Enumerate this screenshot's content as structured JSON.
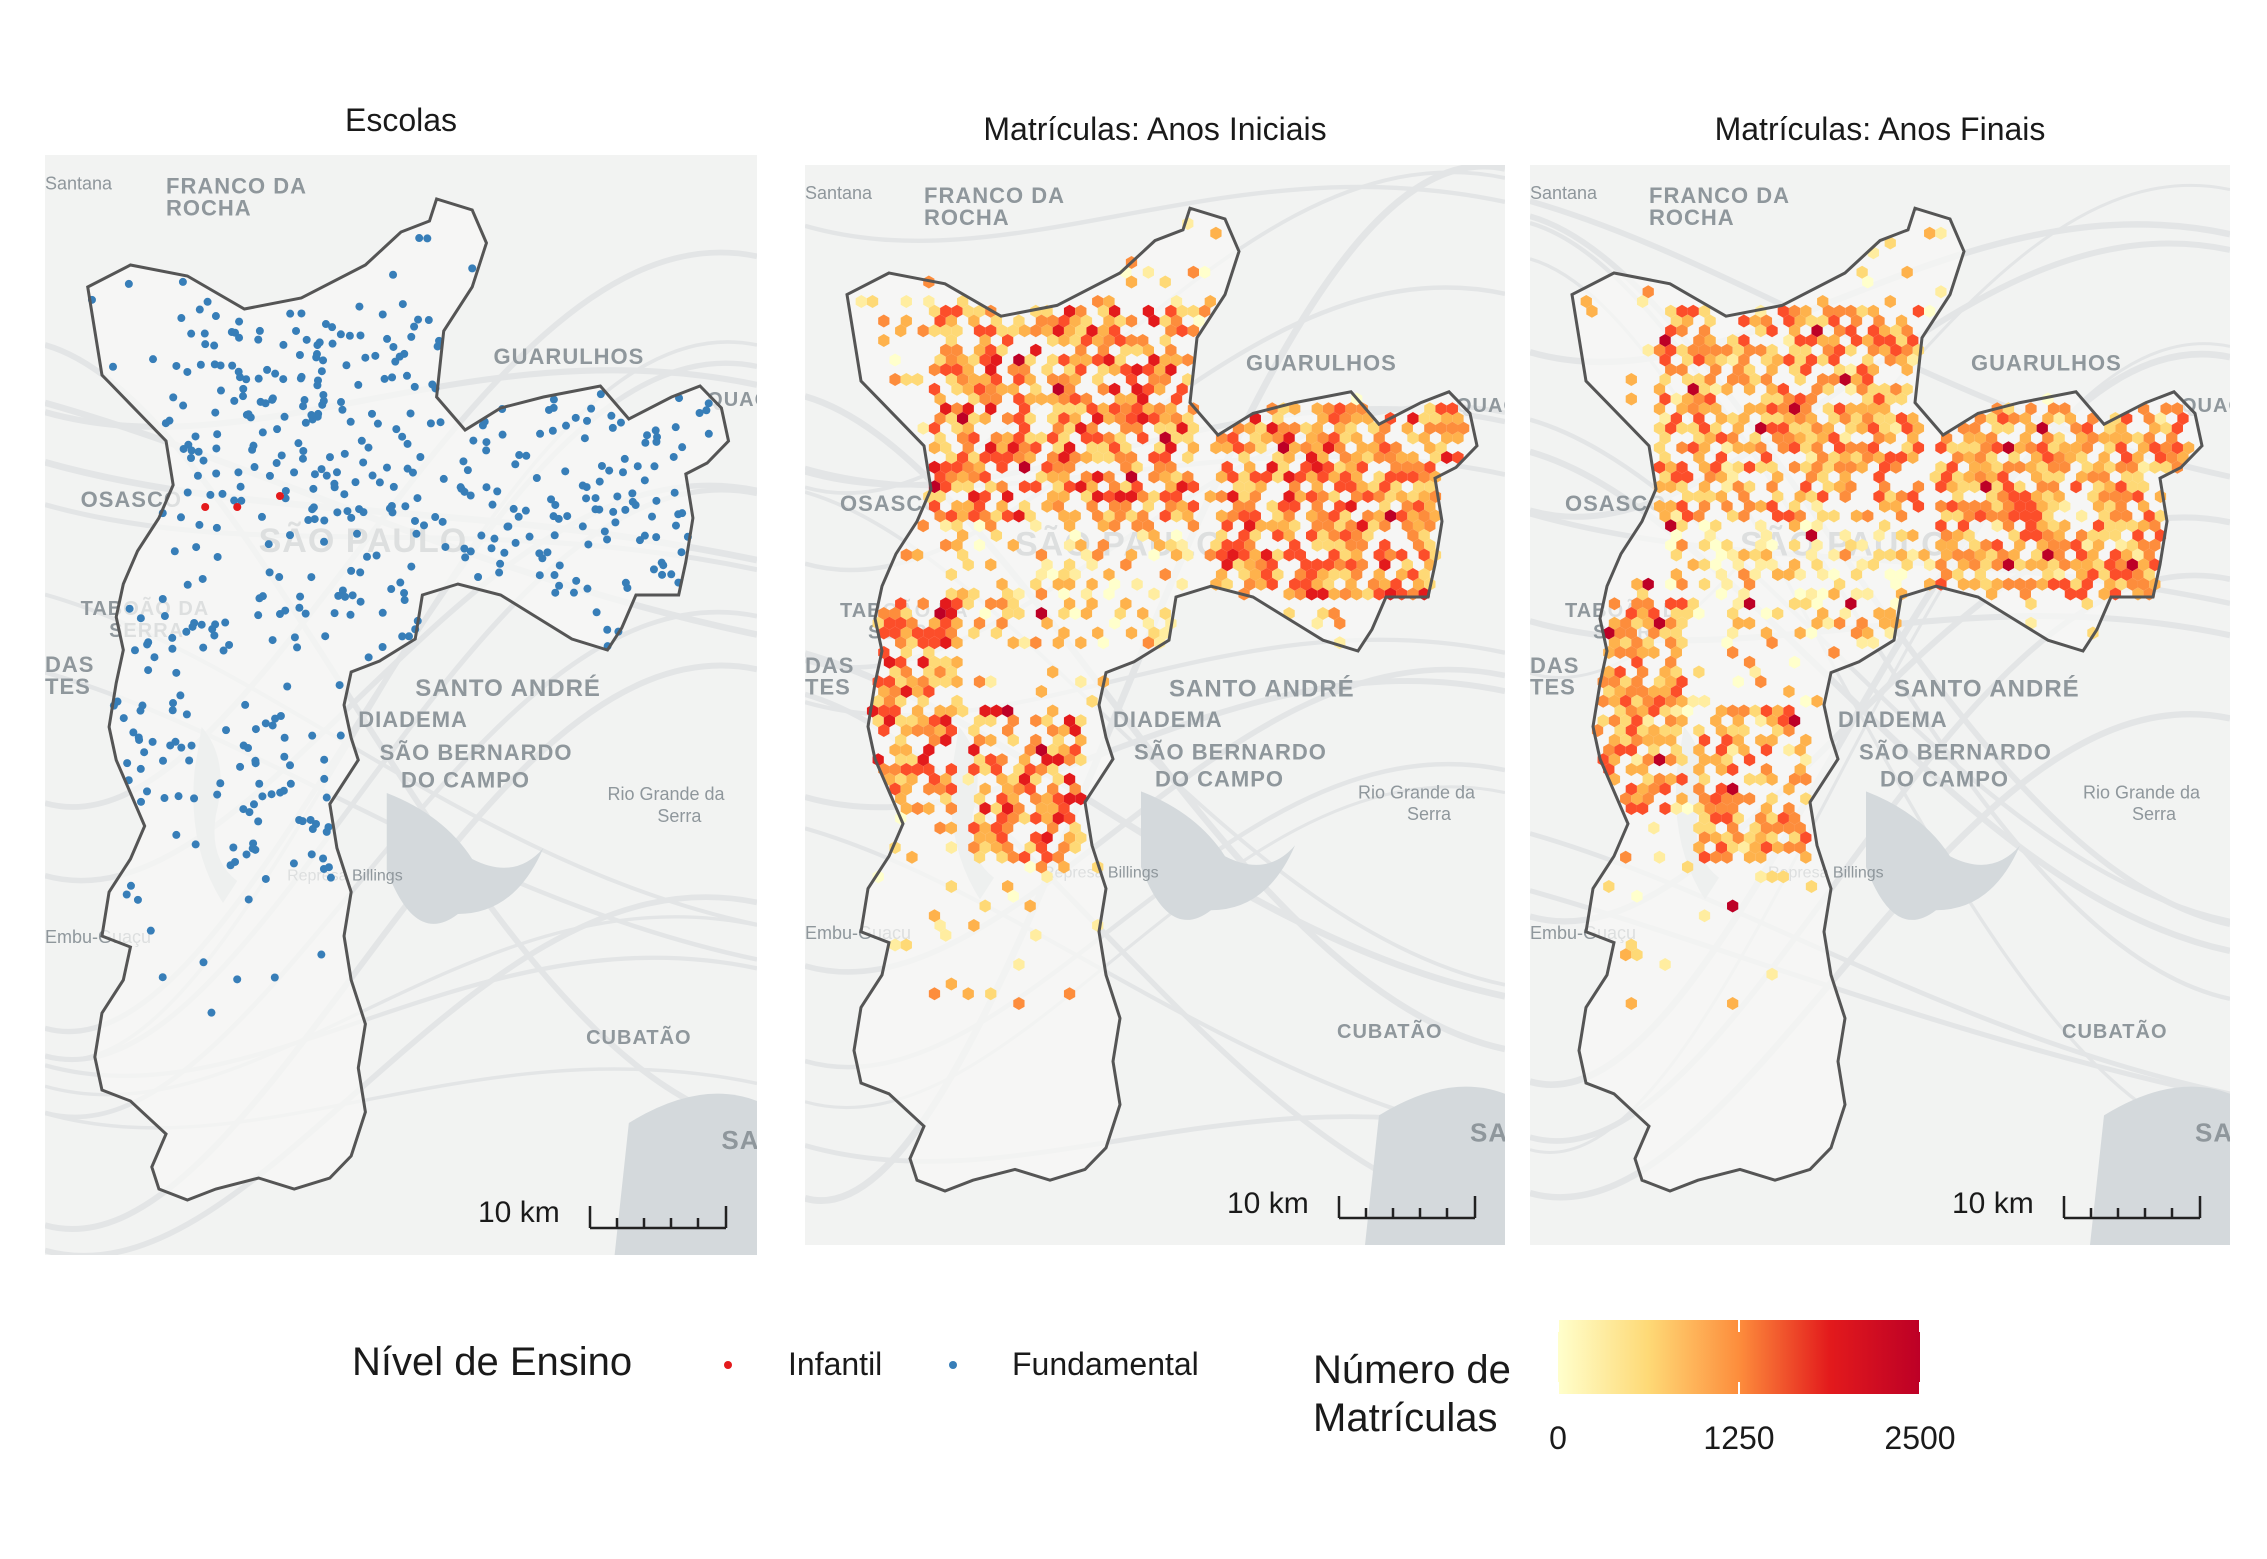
{
  "panels": [
    {
      "title": "Escolas",
      "scale": "10 km"
    },
    {
      "title": "Matrículas: Anos Iniciais",
      "scale": "10 km"
    },
    {
      "title": "Matrículas: Anos Finais",
      "scale": "10 km"
    }
  ],
  "basemap_labels": {
    "franco": "FRANCO DA",
    "rocha": "ROCHA",
    "guarulhos": "GUARULHOS",
    "osasco": "OSASCO",
    "sao_paulo": "SÃO PAULO",
    "taboao": "TABOÃO DA",
    "serra": "SERRA",
    "santo_andre": "SANTO ANDRÉ",
    "diadema": "DIADEMA",
    "sbc1": "SÃO BERNARDO",
    "sbc2": "DO CAMPO",
    "rio_grande1": "Rio Grande da",
    "rio_grande2": "Serra",
    "billings": "Represa Billings",
    "embu": "Embu-Guaçu",
    "cubatao": "CUBATÃO",
    "santana": "Santana",
    "das": "DAS",
    "tes": "TES",
    "quaque": "QUAQUE",
    "san": "SAN"
  },
  "legend_points": {
    "title": "Nível de Ensino",
    "items": [
      {
        "label": "Infantil",
        "color": "#e41a1c"
      },
      {
        "label": "Fundamental",
        "color": "#377eb8"
      }
    ]
  },
  "legend_colorbar": {
    "title_line1": "Número de",
    "title_line2": "Matrículas",
    "ticks": [
      "0",
      "1250",
      "2500"
    ],
    "tick_values": [
      0,
      1250,
      2500
    ],
    "min": 0,
    "max": 2500,
    "colors": [
      "#ffffcc",
      "#fed976",
      "#fd8d3c",
      "#e31a1c",
      "#bd0026"
    ]
  }
}
